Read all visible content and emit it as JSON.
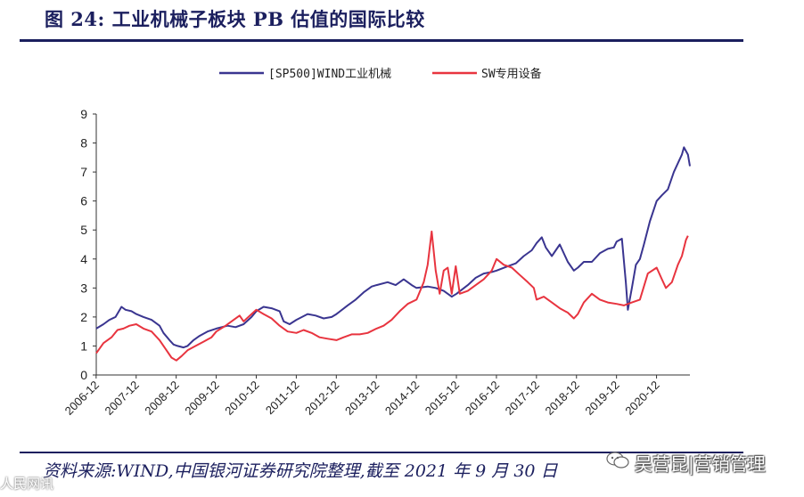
{
  "figure": {
    "title": "图 24:  工业机械子板块 PB 估值的国际比较",
    "source": "资料来源:WIND,中国银河证券研究院整理,截至 2021 年 9 月 30 日",
    "watermark": "吴营昆|营销管理",
    "corner_mark": "人民网讯"
  },
  "colors": {
    "title": "#1b1f5e",
    "series_sp500": "#3a3590",
    "series_sw": "#e8343f"
  },
  "chart_data": {
    "type": "line",
    "title": "",
    "xlabel": "",
    "ylabel": "",
    "ylim": [
      0,
      9
    ],
    "xlim": [
      2006.92,
      2021.75
    ],
    "yticks": [
      "0",
      "1",
      "2",
      "3",
      "4",
      "5",
      "6",
      "7",
      "8",
      "9"
    ],
    "xticks": [
      "2006-12",
      "2007-12",
      "2008-12",
      "2009-12",
      "2010-12",
      "2011-12",
      "2012-12",
      "2013-12",
      "2014-12",
      "2015-12",
      "2016-12",
      "2017-12",
      "2018-12",
      "2019-12",
      "2020-12"
    ],
    "legend_position": "top-center",
    "series": [
      {
        "name": "[SP500]WIND工业机械",
        "color": "#3a3590",
        "points": [
          [
            2006.92,
            1.6
          ],
          [
            2007.1,
            1.75
          ],
          [
            2007.25,
            1.9
          ],
          [
            2007.4,
            2.0
          ],
          [
            2007.55,
            2.35
          ],
          [
            2007.65,
            2.25
          ],
          [
            2007.8,
            2.2
          ],
          [
            2007.92,
            2.1
          ],
          [
            2008.1,
            2.0
          ],
          [
            2008.3,
            1.9
          ],
          [
            2008.5,
            1.7
          ],
          [
            2008.6,
            1.45
          ],
          [
            2008.75,
            1.2
          ],
          [
            2008.85,
            1.05
          ],
          [
            2008.95,
            1.0
          ],
          [
            2009.1,
            0.95
          ],
          [
            2009.2,
            1.0
          ],
          [
            2009.35,
            1.2
          ],
          [
            2009.5,
            1.35
          ],
          [
            2009.7,
            1.5
          ],
          [
            2009.92,
            1.6
          ],
          [
            2010.2,
            1.7
          ],
          [
            2010.4,
            1.65
          ],
          [
            2010.6,
            1.75
          ],
          [
            2010.8,
            2.0
          ],
          [
            2010.92,
            2.2
          ],
          [
            2011.1,
            2.35
          ],
          [
            2011.3,
            2.3
          ],
          [
            2011.5,
            2.2
          ],
          [
            2011.6,
            1.85
          ],
          [
            2011.75,
            1.75
          ],
          [
            2011.92,
            1.9
          ],
          [
            2012.2,
            2.1
          ],
          [
            2012.4,
            2.05
          ],
          [
            2012.6,
            1.95
          ],
          [
            2012.8,
            2.0
          ],
          [
            2012.92,
            2.1
          ],
          [
            2013.2,
            2.4
          ],
          [
            2013.4,
            2.6
          ],
          [
            2013.6,
            2.85
          ],
          [
            2013.8,
            3.05
          ],
          [
            2013.92,
            3.1
          ],
          [
            2014.2,
            3.2
          ],
          [
            2014.4,
            3.1
          ],
          [
            2014.6,
            3.3
          ],
          [
            2014.8,
            3.1
          ],
          [
            2014.92,
            3.0
          ],
          [
            2015.2,
            3.05
          ],
          [
            2015.4,
            3.0
          ],
          [
            2015.6,
            2.9
          ],
          [
            2015.8,
            2.7
          ],
          [
            2015.92,
            2.8
          ],
          [
            2016.2,
            3.1
          ],
          [
            2016.4,
            3.35
          ],
          [
            2016.6,
            3.5
          ],
          [
            2016.8,
            3.55
          ],
          [
            2016.92,
            3.6
          ],
          [
            2017.2,
            3.75
          ],
          [
            2017.4,
            3.85
          ],
          [
            2017.6,
            4.1
          ],
          [
            2017.8,
            4.3
          ],
          [
            2017.92,
            4.55
          ],
          [
            2018.05,
            4.75
          ],
          [
            2018.15,
            4.4
          ],
          [
            2018.3,
            4.1
          ],
          [
            2018.5,
            4.5
          ],
          [
            2018.7,
            3.9
          ],
          [
            2018.85,
            3.6
          ],
          [
            2018.95,
            3.7
          ],
          [
            2019.1,
            3.9
          ],
          [
            2019.3,
            3.9
          ],
          [
            2019.5,
            4.2
          ],
          [
            2019.7,
            4.35
          ],
          [
            2019.85,
            4.4
          ],
          [
            2019.92,
            4.6
          ],
          [
            2020.05,
            4.7
          ],
          [
            2020.15,
            3.2
          ],
          [
            2020.2,
            2.25
          ],
          [
            2020.3,
            3.0
          ],
          [
            2020.4,
            3.8
          ],
          [
            2020.5,
            4.0
          ],
          [
            2020.6,
            4.5
          ],
          [
            2020.75,
            5.3
          ],
          [
            2020.92,
            6.0
          ],
          [
            2021.05,
            6.2
          ],
          [
            2021.2,
            6.4
          ],
          [
            2021.35,
            7.0
          ],
          [
            2021.45,
            7.3
          ],
          [
            2021.55,
            7.6
          ],
          [
            2021.6,
            7.85
          ],
          [
            2021.7,
            7.6
          ],
          [
            2021.75,
            7.2
          ]
        ]
      },
      {
        "name": "SW专用设备",
        "color": "#e8343f",
        "points": [
          [
            2006.92,
            0.75
          ],
          [
            2007.1,
            1.1
          ],
          [
            2007.3,
            1.3
          ],
          [
            2007.45,
            1.55
          ],
          [
            2007.6,
            1.6
          ],
          [
            2007.75,
            1.7
          ],
          [
            2007.92,
            1.75
          ],
          [
            2008.1,
            1.6
          ],
          [
            2008.3,
            1.5
          ],
          [
            2008.5,
            1.2
          ],
          [
            2008.65,
            0.9
          ],
          [
            2008.8,
            0.6
          ],
          [
            2008.92,
            0.5
          ],
          [
            2009.05,
            0.65
          ],
          [
            2009.2,
            0.85
          ],
          [
            2009.4,
            1.0
          ],
          [
            2009.6,
            1.15
          ],
          [
            2009.8,
            1.3
          ],
          [
            2009.92,
            1.5
          ],
          [
            2010.15,
            1.7
          ],
          [
            2010.3,
            1.85
          ],
          [
            2010.5,
            2.05
          ],
          [
            2010.6,
            1.85
          ],
          [
            2010.8,
            2.1
          ],
          [
            2010.92,
            2.25
          ],
          [
            2011.1,
            2.1
          ],
          [
            2011.3,
            1.95
          ],
          [
            2011.5,
            1.7
          ],
          [
            2011.7,
            1.5
          ],
          [
            2011.92,
            1.45
          ],
          [
            2012.1,
            1.55
          ],
          [
            2012.3,
            1.45
          ],
          [
            2012.5,
            1.3
          ],
          [
            2012.7,
            1.25
          ],
          [
            2012.92,
            1.2
          ],
          [
            2013.1,
            1.3
          ],
          [
            2013.3,
            1.4
          ],
          [
            2013.5,
            1.4
          ],
          [
            2013.7,
            1.45
          ],
          [
            2013.92,
            1.6
          ],
          [
            2014.1,
            1.7
          ],
          [
            2014.3,
            1.9
          ],
          [
            2014.5,
            2.2
          ],
          [
            2014.7,
            2.45
          ],
          [
            2014.92,
            2.6
          ],
          [
            2015.1,
            3.2
          ],
          [
            2015.2,
            3.8
          ],
          [
            2015.3,
            4.95
          ],
          [
            2015.4,
            3.6
          ],
          [
            2015.5,
            2.8
          ],
          [
            2015.6,
            3.6
          ],
          [
            2015.7,
            3.7
          ],
          [
            2015.8,
            2.8
          ],
          [
            2015.9,
            3.75
          ],
          [
            2016.0,
            2.8
          ],
          [
            2016.2,
            2.9
          ],
          [
            2016.4,
            3.1
          ],
          [
            2016.6,
            3.3
          ],
          [
            2016.8,
            3.6
          ],
          [
            2016.92,
            4.0
          ],
          [
            2017.1,
            3.8
          ],
          [
            2017.3,
            3.7
          ],
          [
            2017.5,
            3.45
          ],
          [
            2017.7,
            3.2
          ],
          [
            2017.85,
            3.0
          ],
          [
            2017.92,
            2.6
          ],
          [
            2018.1,
            2.7
          ],
          [
            2018.3,
            2.5
          ],
          [
            2018.5,
            2.3
          ],
          [
            2018.7,
            2.15
          ],
          [
            2018.85,
            1.95
          ],
          [
            2018.95,
            2.1
          ],
          [
            2019.1,
            2.5
          ],
          [
            2019.3,
            2.8
          ],
          [
            2019.5,
            2.6
          ],
          [
            2019.7,
            2.5
          ],
          [
            2019.92,
            2.45
          ],
          [
            2020.1,
            2.4
          ],
          [
            2020.3,
            2.5
          ],
          [
            2020.5,
            2.6
          ],
          [
            2020.7,
            3.5
          ],
          [
            2020.92,
            3.7
          ],
          [
            2021.05,
            3.3
          ],
          [
            2021.15,
            3.0
          ],
          [
            2021.3,
            3.2
          ],
          [
            2021.45,
            3.8
          ],
          [
            2021.55,
            4.1
          ],
          [
            2021.65,
            4.65
          ],
          [
            2021.7,
            4.8
          ]
        ]
      }
    ]
  }
}
